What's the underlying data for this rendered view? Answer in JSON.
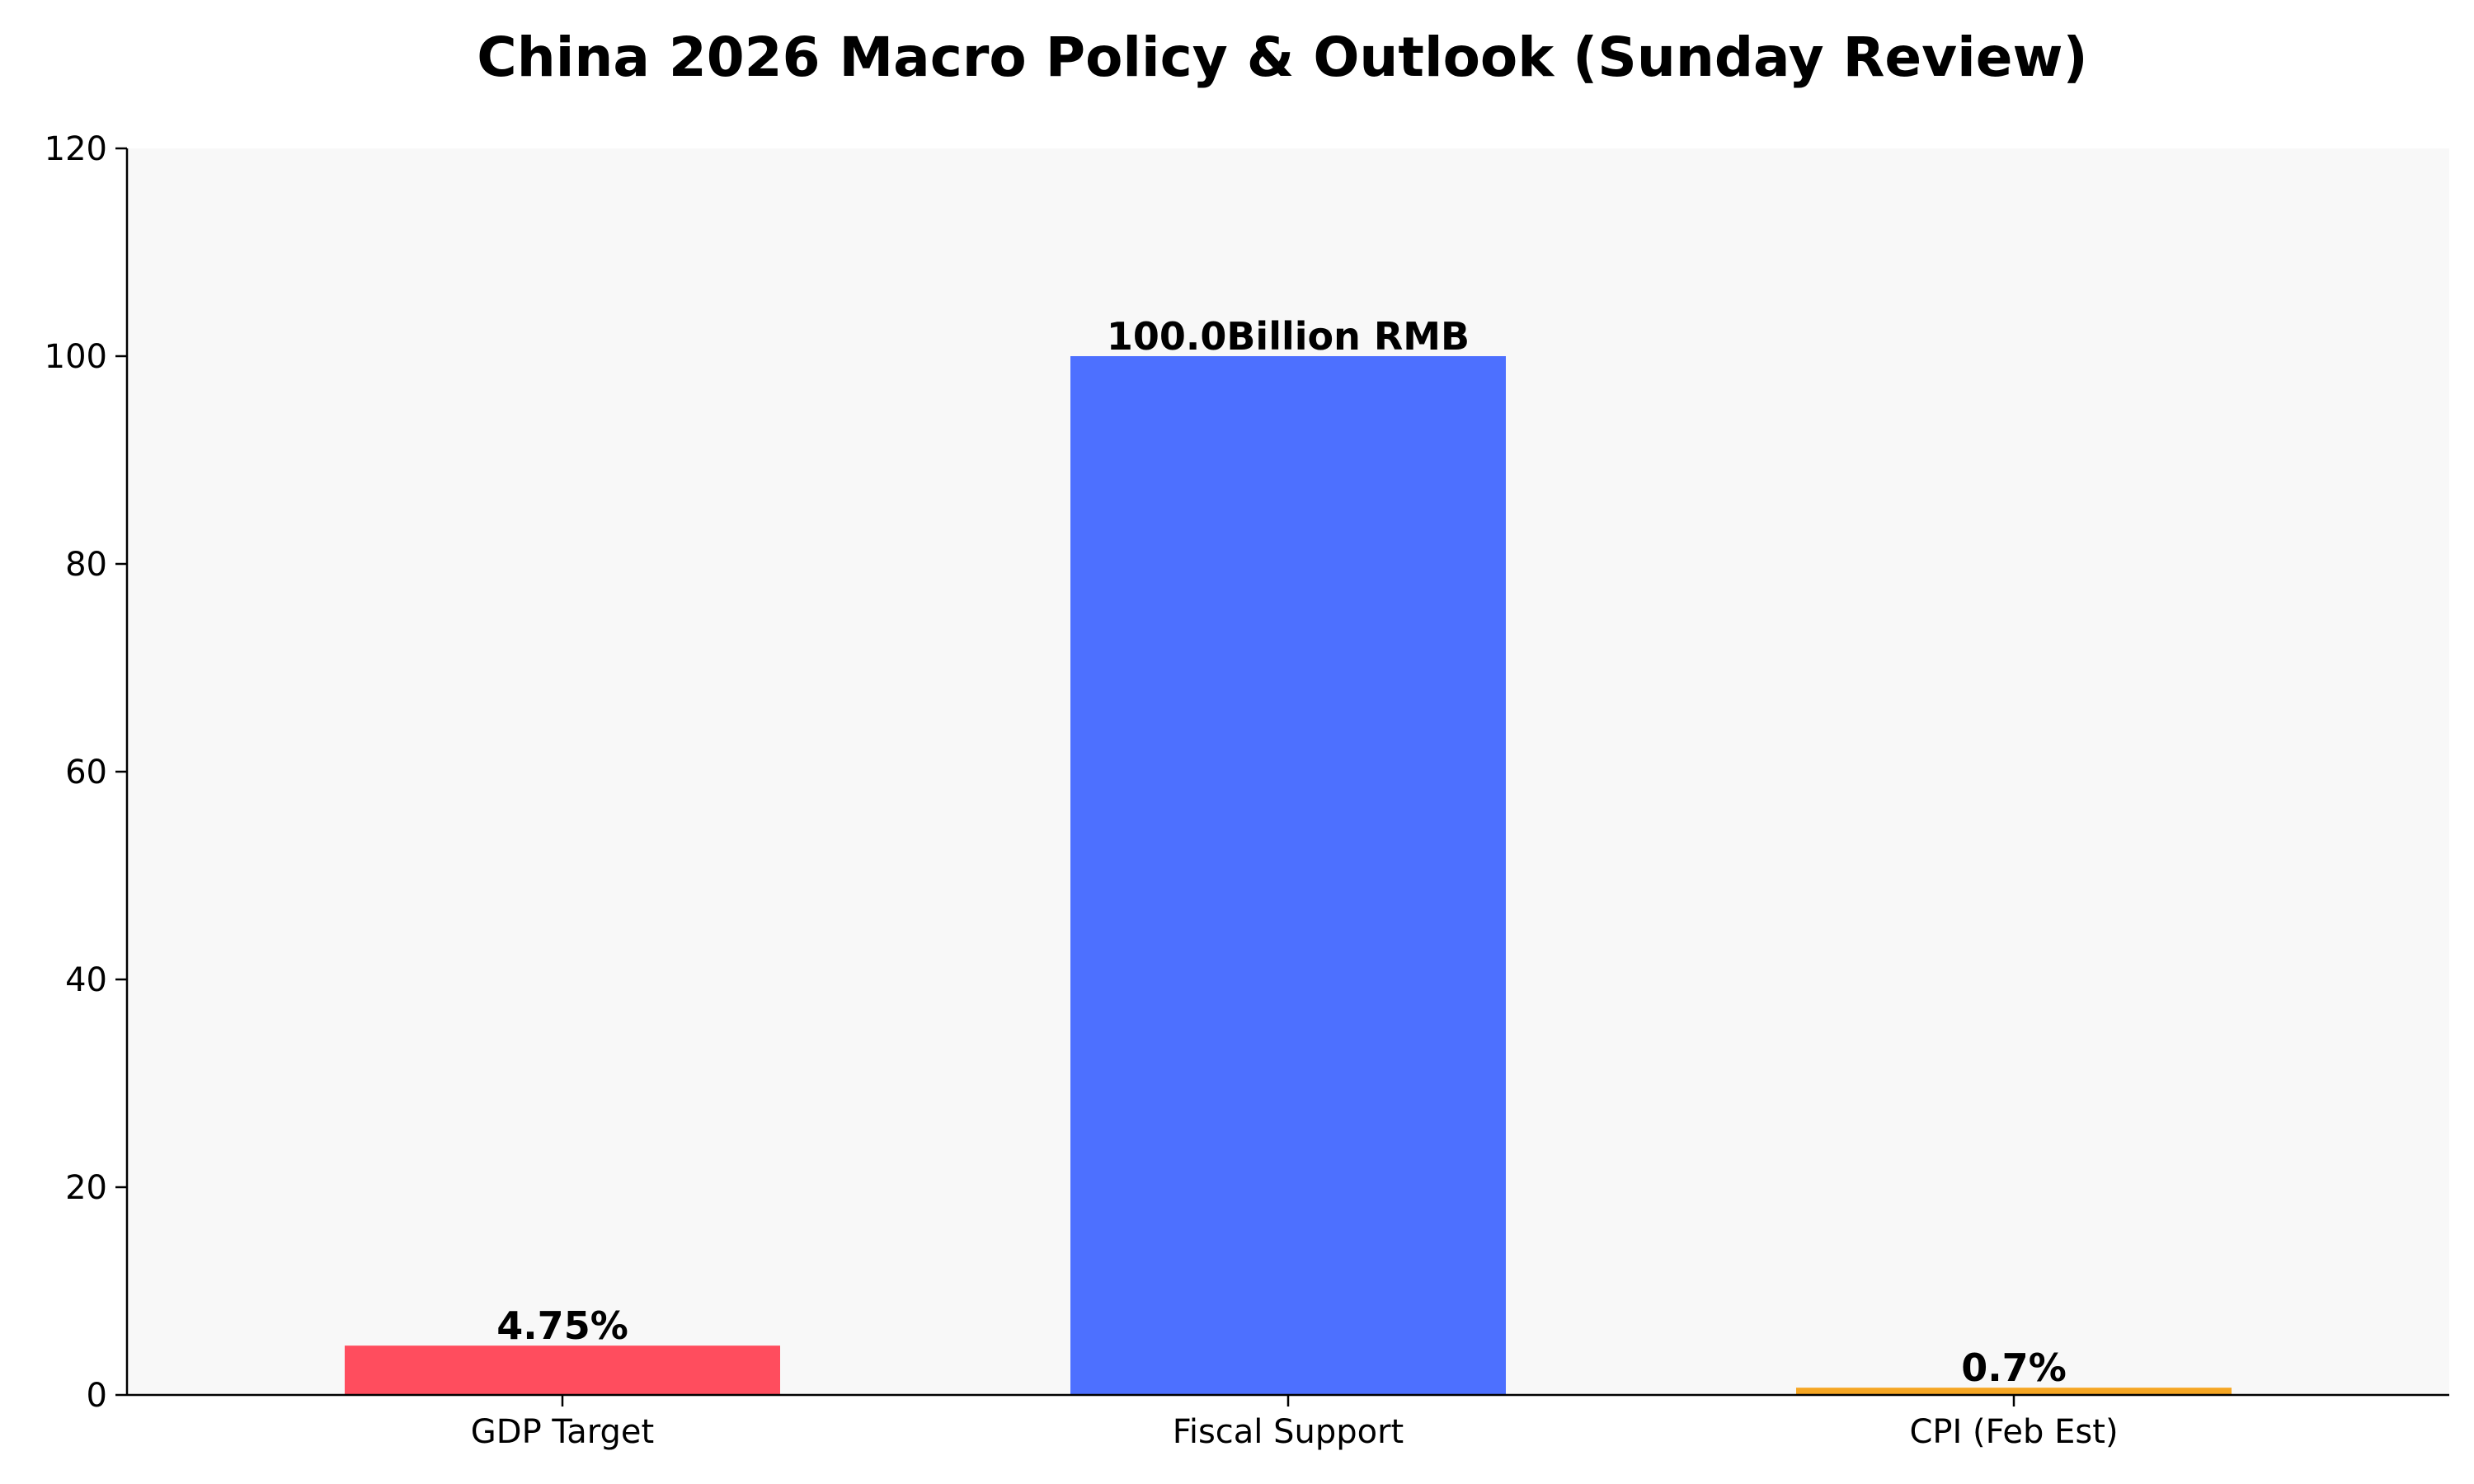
{
  "chart_data": {
    "type": "bar",
    "title": "China 2026 Macro Policy & Outlook (Sunday Review)",
    "xlabel": "",
    "ylabel": "",
    "categories": [
      "GDP Target",
      "Fiscal Support",
      "CPI (Feb Est)"
    ],
    "values": [
      4.75,
      100.0,
      0.7
    ],
    "data_labels": [
      "4.75%",
      "100.0Billion RMB",
      "0.7%"
    ],
    "colors": [
      "#ff4d5e",
      "#4d70ff",
      "#f5a623"
    ],
    "ylim": [
      0,
      120
    ],
    "yticks": [
      0,
      20,
      40,
      60,
      80,
      100,
      120
    ],
    "grid": false,
    "legend": "none",
    "plot_background": "#f8f8f8"
  }
}
